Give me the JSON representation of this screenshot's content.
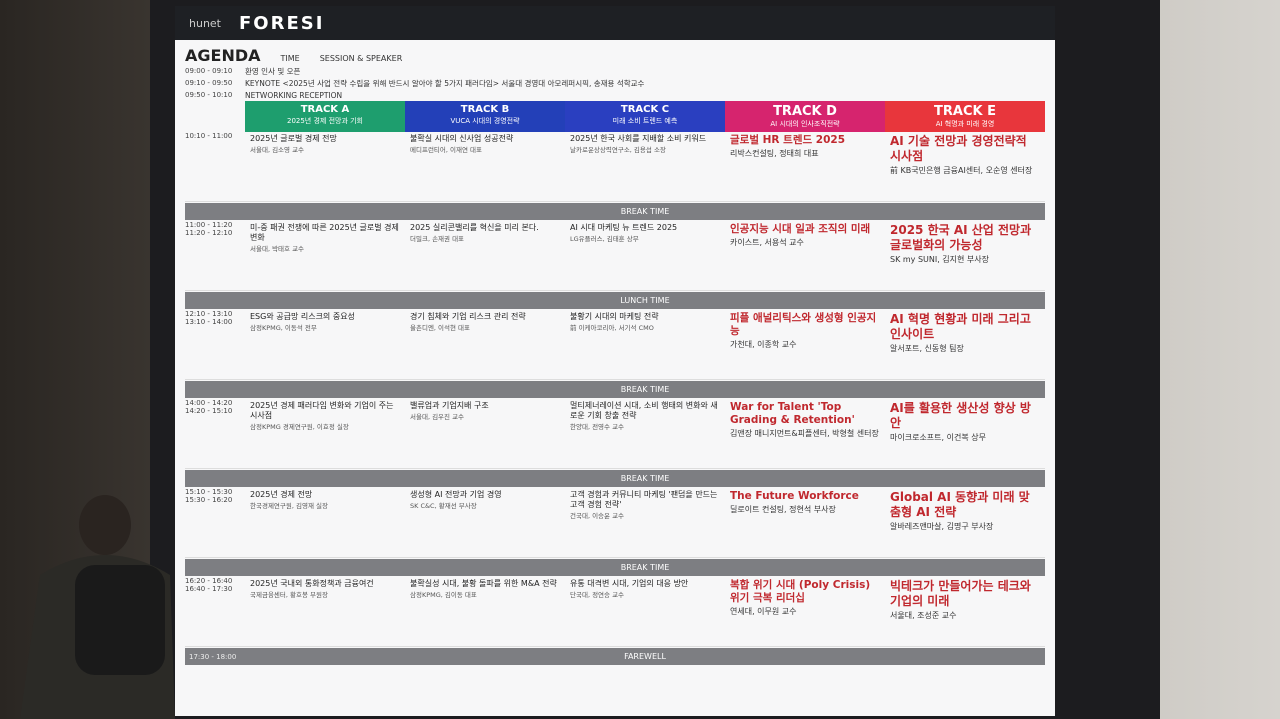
{
  "header": {
    "brand": "hunet",
    "event": "FORESI"
  },
  "agenda": {
    "title": "AGENDA",
    "time_label": "TIME",
    "session_label": "SESSION & SPEAKER",
    "opening": [
      {
        "time": "09:00 - 09:10",
        "text": "환영 인사 및 오픈"
      },
      {
        "time": "09:10 - 09:50",
        "text": "KEYNOTE <2025년 사업 전략 수립을 위해 반드시 알아야 할 5가지 패러다임> 서울대 경영대 아모레퍼시픽, 송재용 석학교수"
      },
      {
        "time": "09:50 - 10:10",
        "text": "NETWORKING RECEPTION"
      }
    ],
    "tracks": [
      {
        "name": "TRACK A",
        "subtitle": "2025년 경제 전망과 기회"
      },
      {
        "name": "TRACK B",
        "subtitle": "VUCA 시대의 경영전략"
      },
      {
        "name": "TRACK C",
        "subtitle": "미래 소비 트렌드 예측"
      },
      {
        "name": "TRACK D",
        "subtitle": "AI 시대의 인사조직전략"
      },
      {
        "name": "TRACK E",
        "subtitle": "AI 혁명과 미래 경영"
      }
    ],
    "schedule": [
      {
        "times": [
          "10:10 - 11:00"
        ],
        "cells": [
          {
            "title": "2025년 글로벌 경제 전망",
            "speaker": "서울대, 김소영 교수"
          },
          {
            "title": "불확실 시대의 신사업 성공전략",
            "speaker": "메디프런티어, 이재연 대표"
          },
          {
            "title": "2025년 한국 사회를 지배할 소비 키워드",
            "speaker": "날카로운상상력연구소, 김용섭 소장"
          },
          {
            "title": "글로벌 HR 트렌드 2025",
            "speaker": "리박스컨설팅, 정태희 대표"
          },
          {
            "title": "AI 기술 전망과 경영전략적 시사점",
            "speaker": "前 KB국민은행 금융AI센터, 오순영 센터장"
          }
        ]
      },
      {
        "label": "BREAK TIME"
      },
      {
        "times": [
          "11:00 - 11:20",
          "11:20 - 12:10"
        ],
        "cells": [
          {
            "title": "미-중 패권 전쟁에 따른 2025년 글로벌 경제 변화",
            "speaker": "서울대, 박태호 교수"
          },
          {
            "title": "2025 실리콘밸리를 혁신을 미리 본다.",
            "speaker": "더밀크, 손재권 대표"
          },
          {
            "title": "AI 시대 마케팅 뉴 트렌드 2025",
            "speaker": "LG유플러스, 김태훈 상무"
          },
          {
            "title": "인공지능 시대 일과 조직의 미래",
            "speaker": "카이스트, 서용석 교수"
          },
          {
            "title": "2025 한국 AI 산업 전망과 글로벌화의 가능성",
            "speaker": "SK my SUNI, 김지현 부사장"
          }
        ]
      },
      {
        "label": "LUNCH TIME"
      },
      {
        "times": [
          "12:10 - 13:10",
          "13:10 - 14:00"
        ],
        "cells": [
          {
            "title": "ESG와 공급망 리스크의 중요성",
            "speaker": "삼정KPMG, 이동석 전무"
          },
          {
            "title": "경기 침체와 기업 리스크 관리 전략",
            "speaker": "율촌디엔, 이석현 대표"
          },
          {
            "title": "불황기 시대의 마케팅 전략",
            "speaker": "前 이케아코리아, 서기석 CMO"
          },
          {
            "title": "피플 애널리틱스와 생성형 인공지능",
            "speaker": "가천대, 이종학 교수"
          },
          {
            "title": "AI 혁명 현황과 미래 그리고 인사이트",
            "speaker": "알서포트, 신동형 팀장"
          }
        ]
      },
      {
        "label": "BREAK TIME"
      },
      {
        "times": [
          "14:00 - 14:20",
          "14:20 - 15:10"
        ],
        "cells": [
          {
            "title": "2025년 경제 패러다임 변화와 기업이 주는 시사점",
            "speaker": "삼정KPMG 경제연구원, 이효정 실장"
          },
          {
            "title": "밸류업과 기업지배 구조",
            "speaker": "서울대, 김우진 교수"
          },
          {
            "title": "멀티제너레이션 시대, 소비 행태의 변화와 새로운 기회 창출 전략",
            "speaker": "한양대, 전영수 교수"
          },
          {
            "title": "War for Talent 'Top Grading & Retention'",
            "speaker": "김앤장 매니지먼트&피플센터, 박형철 센터장"
          },
          {
            "title": "AI를 활용한 생산성 향상 방안",
            "speaker": "마이크로소프트, 이건복 상무"
          }
        ]
      },
      {
        "label": "BREAK TIME"
      },
      {
        "times": [
          "15:10 - 15:30",
          "15:30 - 16:20"
        ],
        "cells": [
          {
            "title": "2025년 경제 전망",
            "speaker": "한국경제연구원, 김영재 실장"
          },
          {
            "title": "생성형 AI 전망과 기업 경영",
            "speaker": "SK C&C, 황재선 부사장"
          },
          {
            "title": "고객 경험과 커뮤니티 마케팅 '팬덤을 만드는 고객 경험 전략'",
            "speaker": "건국대, 이승윤 교수"
          },
          {
            "title": "The Future Workforce",
            "speaker": "딜로이트 컨설팅, 정현석 부사장"
          },
          {
            "title": "Global AI 동향과 미래 맞춤형 AI 전략",
            "speaker": "알바레즈앤마살, 김명구 부사장"
          }
        ]
      },
      {
        "label": "BREAK TIME"
      },
      {
        "times": [
          "16:20 - 16:40",
          "16:40 - 17:30"
        ],
        "cells": [
          {
            "title": "2025년 국내외 통화정책과 금융여건",
            "speaker": "국제금융센터, 황호봉 부원장"
          },
          {
            "title": "불확실성 시대, 불황 돌파를 위한 M&A 전략",
            "speaker": "삼정KPMG, 김이동 대표"
          },
          {
            "title": "유통 대격변 시대, 기업의 대응 방안",
            "speaker": "단국대, 정연승 교수"
          },
          {
            "title": "복합 위기 시대 (Poly Crisis) 위기 극복 리더십",
            "speaker": "연세대, 이무원 교수"
          },
          {
            "title": "빅테크가 만들어가는 테크와 기업의 미래",
            "speaker": "서울대, 조성준 교수"
          }
        ]
      },
      {
        "label": "FAREWELL",
        "time": "17:30 - 18:00"
      }
    ]
  }
}
